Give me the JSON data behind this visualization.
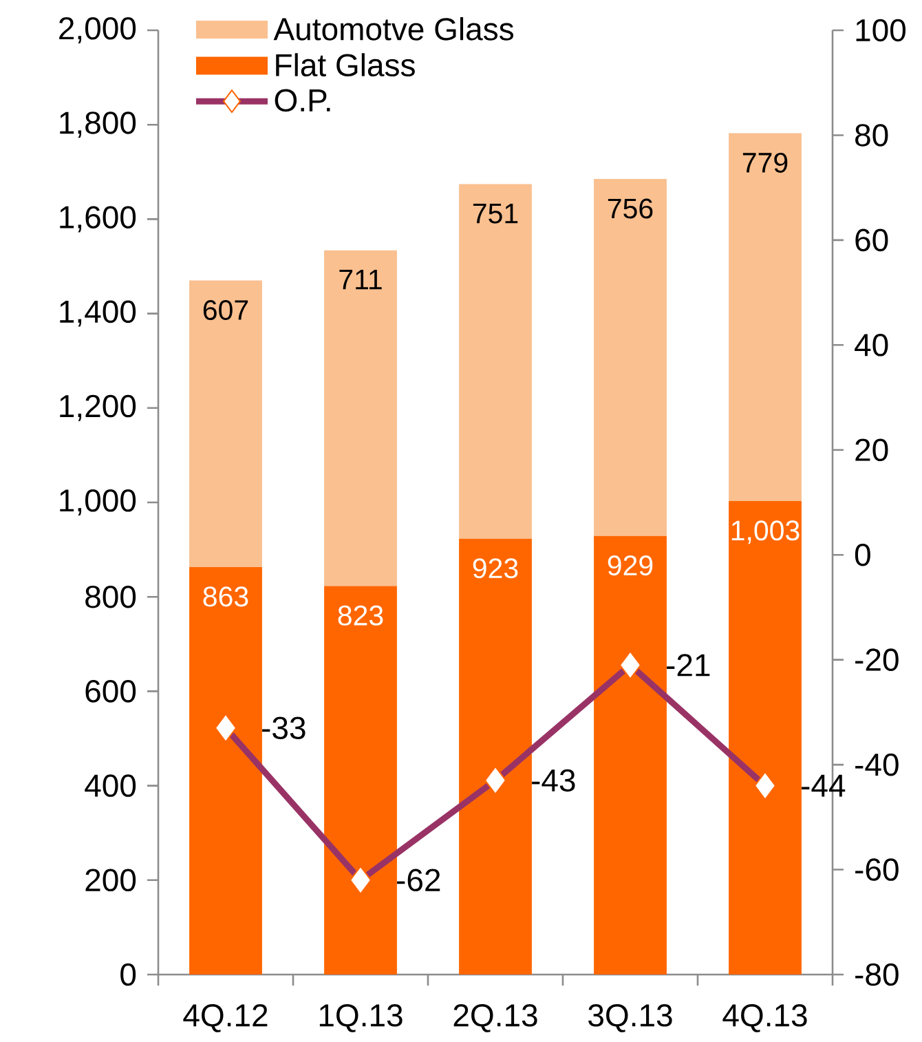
{
  "chart_data": {
    "type": "bar",
    "stacked": true,
    "categories": [
      "4Q.12",
      "1Q.13",
      "2Q.13",
      "3Q.13",
      "4Q.13"
    ],
    "series": [
      {
        "name": "Flat Glass",
        "color": "#ff6600",
        "values": [
          863,
          823,
          923,
          929,
          1003
        ],
        "value_labels": [
          "863",
          "823",
          "923",
          "929",
          "1,003"
        ]
      },
      {
        "name": "Automotve Glass",
        "color": "#fac090",
        "values": [
          607,
          711,
          751,
          756,
          779
        ],
        "value_labels": [
          "607",
          "711",
          "751",
          "756",
          "779"
        ]
      },
      {
        "name": "O.P.",
        "type": "line",
        "axis": "y2",
        "marker": "diamond",
        "color": "#993366",
        "values": [
          -33,
          -62,
          -43,
          -21,
          -44
        ],
        "value_labels": [
          "-33",
          "-62",
          "-43",
          "-21",
          "-44"
        ]
      }
    ],
    "ylim": [
      0,
      2000
    ],
    "yticks": [
      0,
      200,
      400,
      600,
      800,
      {
        "value": 1000,
        "label": "1,000"
      },
      {
        "value": 1200,
        "label": "1,200"
      },
      {
        "value": 1400,
        "label": "1,400"
      },
      {
        "value": 1600,
        "label": "1,600"
      },
      {
        "value": 1800,
        "label": "1,800"
      },
      {
        "value": 2000,
        "label": "2,000"
      }
    ],
    "y2lim": [
      -80,
      100
    ],
    "y2ticks": [
      -80,
      -60,
      -40,
      -20,
      0,
      20,
      40,
      60,
      80,
      100
    ],
    "legend": "top left",
    "grid": false
  }
}
